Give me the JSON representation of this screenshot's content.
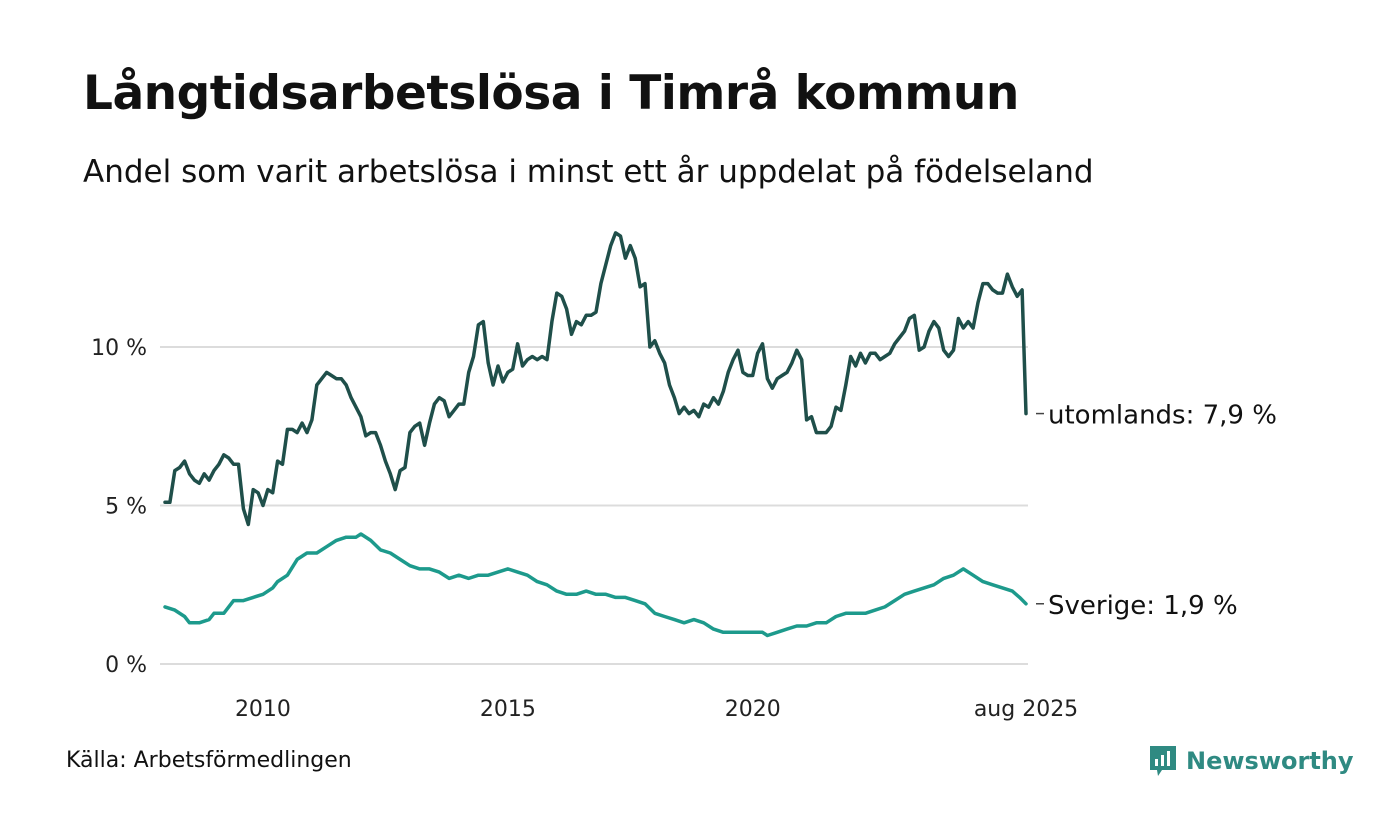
{
  "title": "Långtidsarbetslösa i Timrå kommun",
  "subtitle": "Andel som varit arbetslösa i minst ett år uppdelat på födelseland",
  "source": "Källa: Arbetsförmedlingen",
  "brand": {
    "name": "Newsworthy",
    "icon": "newsworthy-logo-icon",
    "color": "#2f8a82"
  },
  "chart_data": {
    "type": "line",
    "title": "Långtidsarbetslösa i Timrå kommun",
    "subtitle": "Andel som varit arbetslösa i minst ett år uppdelat på födelseland",
    "xlabel": "",
    "ylabel": "",
    "x_range": [
      2008.0,
      2025.58
    ],
    "ylim": [
      0,
      14
    ],
    "y_ticks": [
      {
        "value": 0,
        "label": "0 %"
      },
      {
        "value": 5,
        "label": "5 %"
      },
      {
        "value": 10,
        "label": "10 %"
      }
    ],
    "x_ticks": [
      {
        "value": 2010,
        "label": "2010"
      },
      {
        "value": 2015,
        "label": "2015"
      },
      {
        "value": 2020,
        "label": "2020"
      },
      {
        "value": 2025.58,
        "label": "aug 2025"
      }
    ],
    "grid": "horizontal",
    "legend": "end-labels",
    "series": [
      {
        "name": "utomlands",
        "end_label": "utomlands: 7,9 %",
        "color": "#1f4f4a",
        "points": [
          [
            2008.0,
            5.1
          ],
          [
            2008.1,
            5.1
          ],
          [
            2008.2,
            6.1
          ],
          [
            2008.3,
            6.2
          ],
          [
            2008.4,
            6.4
          ],
          [
            2008.5,
            6.0
          ],
          [
            2008.6,
            5.8
          ],
          [
            2008.7,
            5.7
          ],
          [
            2008.8,
            6.0
          ],
          [
            2008.9,
            5.8
          ],
          [
            2009.0,
            6.1
          ],
          [
            2009.1,
            6.3
          ],
          [
            2009.2,
            6.6
          ],
          [
            2009.3,
            6.5
          ],
          [
            2009.4,
            6.3
          ],
          [
            2009.5,
            6.3
          ],
          [
            2009.6,
            4.9
          ],
          [
            2009.7,
            4.4
          ],
          [
            2009.8,
            5.5
          ],
          [
            2009.9,
            5.4
          ],
          [
            2010.0,
            5.0
          ],
          [
            2010.1,
            5.5
          ],
          [
            2010.2,
            5.4
          ],
          [
            2010.3,
            6.4
          ],
          [
            2010.4,
            6.3
          ],
          [
            2010.5,
            7.4
          ],
          [
            2010.6,
            7.4
          ],
          [
            2010.7,
            7.3
          ],
          [
            2010.8,
            7.6
          ],
          [
            2010.9,
            7.3
          ],
          [
            2011.0,
            7.7
          ],
          [
            2011.1,
            8.8
          ],
          [
            2011.2,
            9.0
          ],
          [
            2011.3,
            9.2
          ],
          [
            2011.4,
            9.1
          ],
          [
            2011.5,
            9.0
          ],
          [
            2011.6,
            9.0
          ],
          [
            2011.7,
            8.8
          ],
          [
            2011.8,
            8.4
          ],
          [
            2011.9,
            8.1
          ],
          [
            2012.0,
            7.8
          ],
          [
            2012.1,
            7.2
          ],
          [
            2012.2,
            7.3
          ],
          [
            2012.3,
            7.3
          ],
          [
            2012.4,
            6.9
          ],
          [
            2012.5,
            6.4
          ],
          [
            2012.6,
            6.0
          ],
          [
            2012.7,
            5.5
          ],
          [
            2012.8,
            6.1
          ],
          [
            2012.9,
            6.2
          ],
          [
            2013.0,
            7.3
          ],
          [
            2013.1,
            7.5
          ],
          [
            2013.2,
            7.6
          ],
          [
            2013.3,
            6.9
          ],
          [
            2013.4,
            7.6
          ],
          [
            2013.5,
            8.2
          ],
          [
            2013.6,
            8.4
          ],
          [
            2013.7,
            8.3
          ],
          [
            2013.8,
            7.8
          ],
          [
            2013.9,
            8.0
          ],
          [
            2014.0,
            8.2
          ],
          [
            2014.1,
            8.2
          ],
          [
            2014.2,
            9.2
          ],
          [
            2014.3,
            9.7
          ],
          [
            2014.4,
            10.7
          ],
          [
            2014.5,
            10.8
          ],
          [
            2014.6,
            9.5
          ],
          [
            2014.7,
            8.8
          ],
          [
            2014.8,
            9.4
          ],
          [
            2014.9,
            8.9
          ],
          [
            2015.0,
            9.2
          ],
          [
            2015.1,
            9.3
          ],
          [
            2015.2,
            10.1
          ],
          [
            2015.3,
            9.4
          ],
          [
            2015.4,
            9.6
          ],
          [
            2015.5,
            9.7
          ],
          [
            2015.6,
            9.6
          ],
          [
            2015.7,
            9.7
          ],
          [
            2015.8,
            9.6
          ],
          [
            2015.9,
            10.8
          ],
          [
            2016.0,
            11.7
          ],
          [
            2016.1,
            11.6
          ],
          [
            2016.2,
            11.2
          ],
          [
            2016.3,
            10.4
          ],
          [
            2016.4,
            10.8
          ],
          [
            2016.5,
            10.7
          ],
          [
            2016.6,
            11.0
          ],
          [
            2016.7,
            11.0
          ],
          [
            2016.8,
            11.1
          ],
          [
            2016.9,
            12.0
          ],
          [
            2017.0,
            12.6
          ],
          [
            2017.1,
            13.2
          ],
          [
            2017.2,
            13.6
          ],
          [
            2017.3,
            13.5
          ],
          [
            2017.4,
            12.8
          ],
          [
            2017.5,
            13.2
          ],
          [
            2017.6,
            12.8
          ],
          [
            2017.7,
            11.9
          ],
          [
            2017.8,
            12.0
          ],
          [
            2017.9,
            10.0
          ],
          [
            2018.0,
            10.2
          ],
          [
            2018.1,
            9.8
          ],
          [
            2018.2,
            9.5
          ],
          [
            2018.3,
            8.8
          ],
          [
            2018.4,
            8.4
          ],
          [
            2018.5,
            7.9
          ],
          [
            2018.6,
            8.1
          ],
          [
            2018.7,
            7.9
          ],
          [
            2018.8,
            8.0
          ],
          [
            2018.9,
            7.8
          ],
          [
            2019.0,
            8.2
          ],
          [
            2019.1,
            8.1
          ],
          [
            2019.2,
            8.4
          ],
          [
            2019.3,
            8.2
          ],
          [
            2019.4,
            8.6
          ],
          [
            2019.5,
            9.2
          ],
          [
            2019.6,
            9.6
          ],
          [
            2019.7,
            9.9
          ],
          [
            2019.8,
            9.2
          ],
          [
            2019.9,
            9.1
          ],
          [
            2020.0,
            9.1
          ],
          [
            2020.1,
            9.8
          ],
          [
            2020.2,
            10.1
          ],
          [
            2020.3,
            9.0
          ],
          [
            2020.4,
            8.7
          ],
          [
            2020.5,
            9.0
          ],
          [
            2020.6,
            9.1
          ],
          [
            2020.7,
            9.2
          ],
          [
            2020.8,
            9.5
          ],
          [
            2020.9,
            9.9
          ],
          [
            2021.0,
            9.6
          ],
          [
            2021.1,
            7.7
          ],
          [
            2021.2,
            7.8
          ],
          [
            2021.3,
            7.3
          ],
          [
            2021.4,
            7.3
          ],
          [
            2021.5,
            7.3
          ],
          [
            2021.6,
            7.5
          ],
          [
            2021.7,
            8.1
          ],
          [
            2021.8,
            8.0
          ],
          [
            2021.9,
            8.8
          ],
          [
            2022.0,
            9.7
          ],
          [
            2022.1,
            9.4
          ],
          [
            2022.2,
            9.8
          ],
          [
            2022.3,
            9.5
          ],
          [
            2022.4,
            9.8
          ],
          [
            2022.5,
            9.8
          ],
          [
            2022.6,
            9.6
          ],
          [
            2022.7,
            9.7
          ],
          [
            2022.8,
            9.8
          ],
          [
            2022.9,
            10.1
          ],
          [
            2023.0,
            10.3
          ],
          [
            2023.1,
            10.5
          ],
          [
            2023.2,
            10.9
          ],
          [
            2023.3,
            11.0
          ],
          [
            2023.4,
            9.9
          ],
          [
            2023.5,
            10.0
          ],
          [
            2023.6,
            10.5
          ],
          [
            2023.7,
            10.8
          ],
          [
            2023.8,
            10.6
          ],
          [
            2023.9,
            9.9
          ],
          [
            2024.0,
            9.7
          ],
          [
            2024.1,
            9.9
          ],
          [
            2024.2,
            10.9
          ],
          [
            2024.3,
            10.6
          ],
          [
            2024.4,
            10.8
          ],
          [
            2024.5,
            10.6
          ],
          [
            2024.6,
            11.4
          ],
          [
            2024.7,
            12.0
          ],
          [
            2024.8,
            12.0
          ],
          [
            2024.9,
            11.8
          ],
          [
            2025.0,
            11.7
          ],
          [
            2025.1,
            11.7
          ],
          [
            2025.2,
            12.3
          ],
          [
            2025.3,
            11.9
          ],
          [
            2025.4,
            11.6
          ],
          [
            2025.5,
            11.8
          ],
          [
            2025.58,
            7.9
          ]
        ]
      },
      {
        "name": "Sverige",
        "end_label": "Sverige: 1,9 %",
        "color": "#1d9a8c",
        "points": [
          [
            2008.0,
            1.8
          ],
          [
            2008.2,
            1.7
          ],
          [
            2008.4,
            1.5
          ],
          [
            2008.5,
            1.3
          ],
          [
            2008.7,
            1.3
          ],
          [
            2008.9,
            1.4
          ],
          [
            2009.0,
            1.6
          ],
          [
            2009.2,
            1.6
          ],
          [
            2009.4,
            2.0
          ],
          [
            2009.6,
            2.0
          ],
          [
            2009.8,
            2.1
          ],
          [
            2010.0,
            2.2
          ],
          [
            2010.2,
            2.4
          ],
          [
            2010.3,
            2.6
          ],
          [
            2010.5,
            2.8
          ],
          [
            2010.7,
            3.3
          ],
          [
            2010.9,
            3.5
          ],
          [
            2011.1,
            3.5
          ],
          [
            2011.3,
            3.7
          ],
          [
            2011.5,
            3.9
          ],
          [
            2011.7,
            4.0
          ],
          [
            2011.9,
            4.0
          ],
          [
            2012.0,
            4.1
          ],
          [
            2012.2,
            3.9
          ],
          [
            2012.4,
            3.6
          ],
          [
            2012.6,
            3.5
          ],
          [
            2012.8,
            3.3
          ],
          [
            2013.0,
            3.1
          ],
          [
            2013.2,
            3.0
          ],
          [
            2013.4,
            3.0
          ],
          [
            2013.6,
            2.9
          ],
          [
            2013.8,
            2.7
          ],
          [
            2014.0,
            2.8
          ],
          [
            2014.2,
            2.7
          ],
          [
            2014.4,
            2.8
          ],
          [
            2014.6,
            2.8
          ],
          [
            2014.8,
            2.9
          ],
          [
            2015.0,
            3.0
          ],
          [
            2015.2,
            2.9
          ],
          [
            2015.4,
            2.8
          ],
          [
            2015.6,
            2.6
          ],
          [
            2015.8,
            2.5
          ],
          [
            2016.0,
            2.3
          ],
          [
            2016.2,
            2.2
          ],
          [
            2016.4,
            2.2
          ],
          [
            2016.6,
            2.3
          ],
          [
            2016.8,
            2.2
          ],
          [
            2017.0,
            2.2
          ],
          [
            2017.2,
            2.1
          ],
          [
            2017.4,
            2.1
          ],
          [
            2017.6,
            2.0
          ],
          [
            2017.8,
            1.9
          ],
          [
            2018.0,
            1.6
          ],
          [
            2018.2,
            1.5
          ],
          [
            2018.4,
            1.4
          ],
          [
            2018.6,
            1.3
          ],
          [
            2018.8,
            1.4
          ],
          [
            2019.0,
            1.3
          ],
          [
            2019.2,
            1.1
          ],
          [
            2019.4,
            1.0
          ],
          [
            2019.6,
            1.0
          ],
          [
            2019.8,
            1.0
          ],
          [
            2020.0,
            1.0
          ],
          [
            2020.2,
            1.0
          ],
          [
            2020.3,
            0.9
          ],
          [
            2020.5,
            1.0
          ],
          [
            2020.7,
            1.1
          ],
          [
            2020.9,
            1.2
          ],
          [
            2021.1,
            1.2
          ],
          [
            2021.3,
            1.3
          ],
          [
            2021.5,
            1.3
          ],
          [
            2021.7,
            1.5
          ],
          [
            2021.9,
            1.6
          ],
          [
            2022.1,
            1.6
          ],
          [
            2022.3,
            1.6
          ],
          [
            2022.5,
            1.7
          ],
          [
            2022.7,
            1.8
          ],
          [
            2022.9,
            2.0
          ],
          [
            2023.1,
            2.2
          ],
          [
            2023.3,
            2.3
          ],
          [
            2023.5,
            2.4
          ],
          [
            2023.7,
            2.5
          ],
          [
            2023.9,
            2.7
          ],
          [
            2024.1,
            2.8
          ],
          [
            2024.3,
            3.0
          ],
          [
            2024.5,
            2.8
          ],
          [
            2024.7,
            2.6
          ],
          [
            2024.9,
            2.5
          ],
          [
            2025.1,
            2.4
          ],
          [
            2025.3,
            2.3
          ],
          [
            2025.45,
            2.1
          ],
          [
            2025.58,
            1.9
          ]
        ]
      }
    ]
  }
}
